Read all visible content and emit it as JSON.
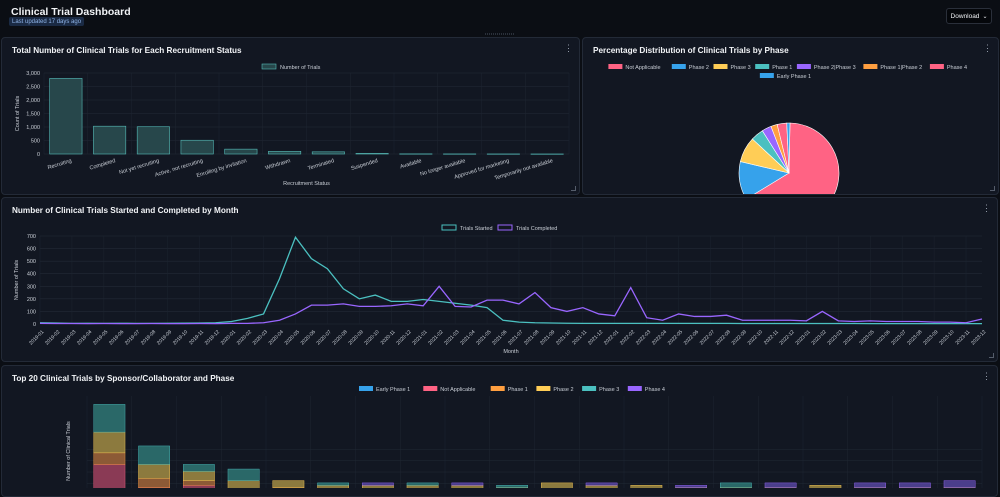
{
  "header": {
    "title": "Clinical Trial Dashboard",
    "updated": "Last updated 17 days ago",
    "download_label": "Download"
  },
  "panels": {
    "status": {
      "title": "Total Number of Clinical Trials for Each Recruitment Status"
    },
    "phase": {
      "title": "Percentage Distribution of Clinical Trials by Phase"
    },
    "monthly": {
      "title": "Number of Clinical Trials Started and Completed by Month"
    },
    "sponsor": {
      "title": "Top 20 Clinical Trials by Sponsor/Collaborator and Phase"
    }
  },
  "colors": {
    "bar_fill": "#27474b",
    "bar_stroke": "#56bcb8",
    "started": "#4bc0c0",
    "completed": "#9966ff"
  },
  "chart_data": [
    {
      "type": "bar",
      "title": "Total Number of Clinical Trials for Each Recruitment Status",
      "legend": [
        "Number of Trials"
      ],
      "categories": [
        "Recruiting",
        "Completed",
        "Not yet recruiting",
        "Active, not recruiting",
        "Enrolling by invitation",
        "Withdrawn",
        "Terminated",
        "Suspended",
        "Available",
        "No longer available",
        "Approved for marketing",
        "Temporarily not available"
      ],
      "values": [
        2800,
        1030,
        1010,
        510,
        180,
        100,
        80,
        20,
        5,
        3,
        2,
        1
      ],
      "xlabel": "Recruitment Status",
      "ylabel": "Count of Trials",
      "ylim": [
        0,
        3000
      ],
      "yticks": [
        "0",
        "500",
        "1,000",
        "1,500",
        "2,000",
        "2,500",
        "3,000"
      ]
    },
    {
      "type": "pie",
      "title": "Percentage Distribution of Clinical Trials by Phase",
      "labels": [
        "Not Applicable",
        "Phase 2",
        "Phase 3",
        "Phase 1",
        "Phase 2|Phase 3",
        "Phase 1|Phase 2",
        "Phase 4",
        "Early Phase 1"
      ],
      "values": [
        64,
        12,
        8,
        4,
        3,
        2,
        3,
        1
      ],
      "colors": [
        "#ff6384",
        "#36a2eb",
        "#ffcd56",
        "#4bc0c0",
        "#9966ff",
        "#ff9f40",
        "#ff6384",
        "#36a2eb"
      ]
    },
    {
      "type": "line",
      "title": "Number of Clinical Trials Started and Completed by Month",
      "xlabel": "Month",
      "ylabel": "Number of Trials",
      "ylim": [
        0,
        700
      ],
      "yticks": [
        "0",
        "100",
        "200",
        "300",
        "400",
        "500",
        "600",
        "700"
      ],
      "x": [
        "2019-01",
        "2019-02",
        "2019-03",
        "2019-04",
        "2019-05",
        "2019-06",
        "2019-07",
        "2019-08",
        "2019-09",
        "2019-10",
        "2019-11",
        "2019-12",
        "2020-01",
        "2020-02",
        "2020-03",
        "2020-04",
        "2020-05",
        "2020-06",
        "2020-07",
        "2020-08",
        "2020-09",
        "2020-10",
        "2020-11",
        "2020-12",
        "2021-01",
        "2021-02",
        "2021-03",
        "2021-04",
        "2021-05",
        "2021-06",
        "2021-07",
        "2021-08",
        "2021-09",
        "2021-10",
        "2021-11",
        "2021-12",
        "2022-01",
        "2022-02",
        "2022-03",
        "2022-04",
        "2022-05",
        "2022-06",
        "2022-07",
        "2022-08",
        "2022-09",
        "2022-10",
        "2022-11",
        "2022-12",
        "2023-01",
        "2023-02",
        "2023-03",
        "2023-04",
        "2023-05",
        "2023-06",
        "2023-07",
        "2023-08",
        "2023-09",
        "2023-10",
        "2023-11",
        "2023-12"
      ],
      "series": [
        {
          "name": "Trials Started",
          "values": [
            10,
            8,
            5,
            6,
            5,
            6,
            5,
            5,
            6,
            7,
            8,
            10,
            20,
            45,
            80,
            360,
            690,
            520,
            440,
            280,
            200,
            230,
            180,
            180,
            195,
            180,
            165,
            150,
            130,
            30,
            15,
            10,
            8,
            6,
            5,
            5,
            5,
            5,
            5,
            5,
            5,
            5,
            5,
            5,
            4,
            4,
            4,
            4,
            4,
            4,
            4,
            4,
            3,
            3,
            3,
            3,
            3,
            3,
            3,
            3
          ]
        },
        {
          "name": "Trials Completed",
          "values": [
            5,
            4,
            4,
            3,
            4,
            3,
            3,
            4,
            3,
            3,
            4,
            3,
            5,
            5,
            10,
            30,
            80,
            150,
            150,
            160,
            140,
            140,
            145,
            160,
            145,
            300,
            140,
            135,
            190,
            190,
            160,
            250,
            130,
            100,
            130,
            80,
            65,
            290,
            50,
            30,
            80,
            60,
            60,
            70,
            30,
            30,
            30,
            30,
            25,
            100,
            25,
            20,
            25,
            20,
            20,
            20,
            15,
            15,
            10,
            40
          ]
        }
      ]
    },
    {
      "type": "bar",
      "stacked": true,
      "title": "Top 20 Clinical Trials by Sponsor/Collaborator and Phase",
      "ylabel": "Number of Clinical Trials",
      "legend": [
        "Early Phase 1",
        "Not Applicable",
        "Phase 1",
        "Phase 2",
        "Phase 3",
        "Phase 4"
      ],
      "legend_colors": [
        "#36a2eb",
        "#ff6384",
        "#ff9f40",
        "#ffcd56",
        "#4bc0c0",
        "#9966ff"
      ],
      "series": [
        {
          "name": "Early Phase 1",
          "values": [
            0,
            0,
            0,
            0,
            0,
            0,
            0,
            0,
            0,
            0,
            0,
            0,
            0,
            0,
            0,
            0,
            0,
            0,
            0,
            0
          ]
        },
        {
          "name": "Not Applicable",
          "values": [
            18,
            8,
            9,
            4,
            6,
            3,
            5,
            4,
            5,
            4,
            3,
            5,
            6,
            4,
            5,
            5,
            4,
            5,
            5,
            4
          ]
        },
        {
          "name": "Phase 1",
          "values": [
            5,
            4,
            2,
            3,
            2,
            2,
            1,
            2,
            2,
            1,
            2,
            1,
            1,
            1,
            2,
            1,
            2,
            0,
            1,
            2
          ]
        },
        {
          "name": "Phase 2",
          "values": [
            9,
            6,
            4,
            4,
            3,
            4,
            3,
            3,
            2,
            3,
            5,
            3,
            2,
            3,
            1,
            2,
            3,
            3,
            2,
            2
          ]
        },
        {
          "name": "Phase 3",
          "values": [
            12,
            8,
            3,
            5,
            0,
            1,
            0,
            1,
            0,
            1,
            0,
            0,
            0,
            0,
            2,
            0,
            0,
            0,
            0,
            0
          ]
        },
        {
          "name": "Phase 4",
          "values": [
            0,
            0,
            0,
            0,
            0,
            0,
            1,
            0,
            1,
            0,
            0,
            1,
            0,
            1,
            0,
            2,
            0,
            2,
            2,
            3
          ]
        }
      ]
    }
  ]
}
